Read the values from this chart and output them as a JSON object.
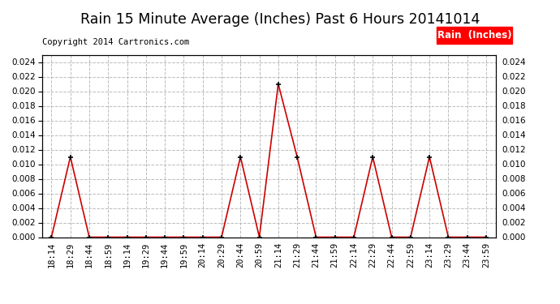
{
  "title": "Rain 15 Minute Average (Inches) Past 6 Hours 20141014",
  "copyright_text": "Copyright 2014 Cartronics.com",
  "legend_label": "Rain  (Inches)",
  "legend_bg": "#FF0000",
  "legend_text_color": "#FFFFFF",
  "x_labels": [
    "18:14",
    "18:29",
    "18:44",
    "18:59",
    "19:14",
    "19:29",
    "19:44",
    "19:59",
    "20:14",
    "20:29",
    "20:44",
    "20:59",
    "21:14",
    "21:29",
    "21:44",
    "21:59",
    "22:14",
    "22:29",
    "22:44",
    "22:59",
    "23:14",
    "23:29",
    "23:44",
    "23:59"
  ],
  "y_values": [
    0.0,
    0.011,
    0.0,
    0.0,
    0.0,
    0.0,
    0.0,
    0.0,
    0.0,
    0.0,
    0.011,
    0.0,
    0.021,
    0.011,
    0.0,
    0.0,
    0.0,
    0.011,
    0.0,
    0.0,
    0.011,
    0.0,
    0.0,
    0.0
  ],
  "line_color": "#CC0000",
  "marker_color": "#000000",
  "ylim": [
    0.0,
    0.025
  ],
  "yticks": [
    0.0,
    0.002,
    0.004,
    0.006,
    0.008,
    0.01,
    0.012,
    0.014,
    0.016,
    0.018,
    0.02,
    0.022,
    0.024
  ],
  "grid_color": "#BBBBBB",
  "background_color": "#FFFFFF",
  "title_fontsize": 12.5,
  "copyright_fontsize": 7.5,
  "tick_fontsize": 7.5,
  "legend_fontsize": 8.5
}
